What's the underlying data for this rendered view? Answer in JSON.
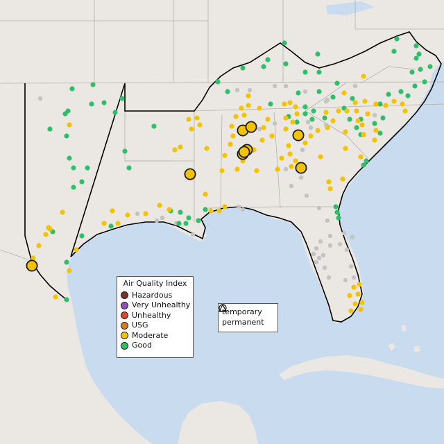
{
  "legend": {
    "title": "Air Quality Index",
    "items": [
      {
        "label": "Hazardous",
        "color": "#7e2f2a"
      },
      {
        "label": "Very Unhealthy",
        "color": "#8e4fb8"
      },
      {
        "label": "Unhealthy",
        "color": "#e0452f"
      },
      {
        "label": "USG",
        "color": "#e07a18"
      },
      {
        "label": "Moderate",
        "color": "#f4c300"
      },
      {
        "label": "Good",
        "color": "#2fbf6a"
      }
    ]
  },
  "shape_legend": {
    "temporary": "temporary",
    "permanent": "permanent"
  },
  "colors": {
    "land": "#ebe7e3",
    "water": "#c9dbee",
    "no_data": "#c3c3c3"
  },
  "stations": {
    "good_count": 80,
    "moderate_count": 94,
    "no_data_count": 46,
    "large_moderate_count": 9
  }
}
